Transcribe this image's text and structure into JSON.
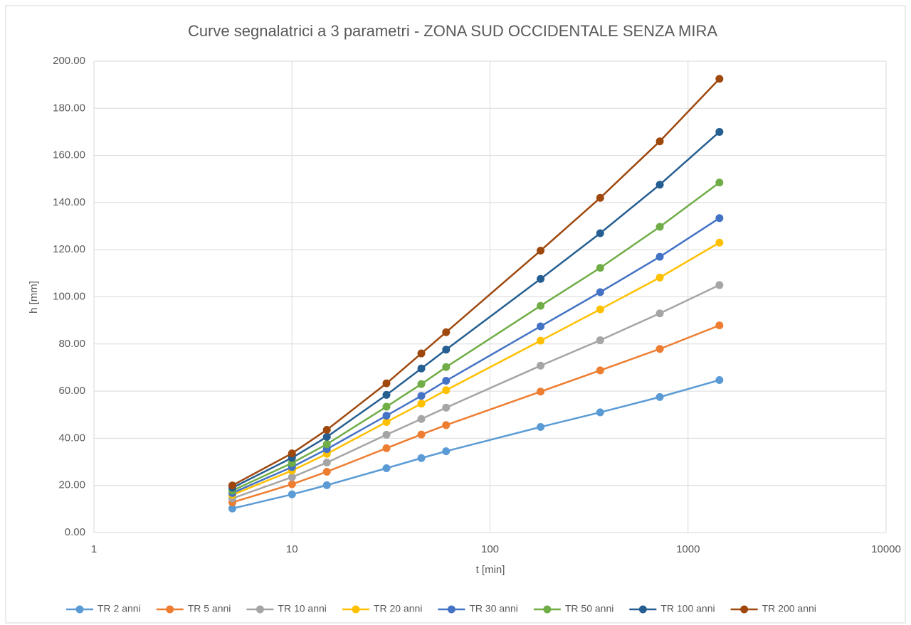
{
  "chart_data": {
    "type": "line",
    "title": "Curve segnalatrici a 3 parametri - ZONA SUD OCCIDENTALE SENZA MIRA",
    "x_label": "t [min]",
    "y_label": "h [mm]",
    "x_scale": "log",
    "grid": true,
    "legend": "bottom",
    "xlim": [
      1,
      10000
    ],
    "xticks": [
      1,
      10,
      100,
      1000,
      10000
    ],
    "ylim": [
      0,
      200
    ],
    "yticks": [
      {
        "value": 0,
        "label": "0.00"
      },
      {
        "value": 20,
        "label": "20.00"
      },
      {
        "value": 40,
        "label": "40.00"
      },
      {
        "value": 60,
        "label": "60.00"
      },
      {
        "value": 80,
        "label": "80.00"
      },
      {
        "value": 100,
        "label": "100.00"
      },
      {
        "value": 120,
        "label": "120.00"
      },
      {
        "value": 140,
        "label": "140.00"
      },
      {
        "value": 160,
        "label": "160.00"
      },
      {
        "value": 180,
        "label": "180.00"
      },
      {
        "value": 200,
        "label": "200.00"
      }
    ],
    "x": [
      5,
      10,
      15,
      30,
      45,
      60,
      180,
      360,
      720,
      1440
    ],
    "series": [
      {
        "name": "TR 2 anni",
        "color": "#5b9bd5",
        "values": [
          10.2,
          16.2,
          20.1,
          27.3,
          31.6,
          34.5,
          44.8,
          51.0,
          57.5,
          64.7
        ]
      },
      {
        "name": "TR 5 anni",
        "color": "#ed7d31",
        "values": [
          12.8,
          20.5,
          25.8,
          35.8,
          41.6,
          45.6,
          59.8,
          68.8,
          77.9,
          87.9
        ]
      },
      {
        "name": "TR 10 anni",
        "color": "#a5a5a5",
        "values": [
          14.5,
          23.5,
          29.7,
          41.5,
          48.2,
          53.0,
          70.8,
          81.6,
          93.0,
          105.0
        ]
      },
      {
        "name": "TR 20 anni",
        "color": "#ffc000",
        "values": [
          16.0,
          26.3,
          33.4,
          46.9,
          54.7,
          60.4,
          81.4,
          94.7,
          108.2,
          123.0
        ]
      },
      {
        "name": "TR 30 anni",
        "color": "#4472c4",
        "values": [
          16.8,
          27.8,
          35.4,
          49.6,
          58.0,
          64.4,
          87.5,
          102.0,
          117.0,
          133.4
        ]
      },
      {
        "name": "TR 50 anni",
        "color": "#70ad47",
        "values": [
          17.8,
          29.5,
          37.5,
          53.4,
          63.0,
          70.2,
          96.2,
          112.3,
          129.7,
          148.5
        ]
      },
      {
        "name": "TR 100 anni",
        "color": "#255e91",
        "values": [
          19.0,
          31.7,
          40.6,
          58.4,
          69.6,
          77.6,
          107.6,
          127.0,
          147.6,
          170.0
        ]
      },
      {
        "name": "TR 200 anni",
        "color": "#9e480e",
        "values": [
          20.0,
          33.6,
          43.6,
          63.3,
          76.0,
          85.0,
          119.6,
          142.0,
          166.0,
          192.5
        ]
      }
    ]
  }
}
